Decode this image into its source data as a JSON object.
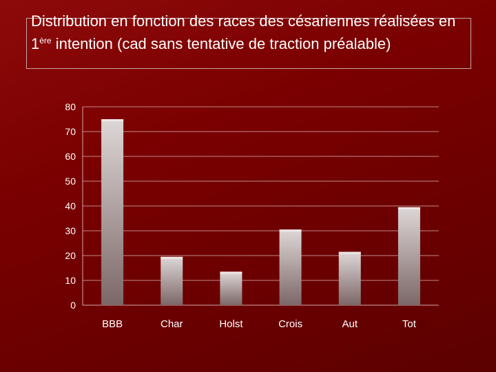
{
  "slide": {
    "title_part1": "Distribution en fonction des races des césariennes réalisées en 1",
    "title_sup": "ère",
    "title_part2": " intention (cad sans tentative de traction préalable)"
  },
  "chart_data": {
    "type": "bar",
    "categories": [
      "BBB",
      "Char",
      "Holst",
      "Crois",
      "Aut",
      "Tot"
    ],
    "values": [
      75,
      19.5,
      13.5,
      30.5,
      21.5,
      39.5
    ],
    "ylim": [
      0,
      80
    ],
    "yticks": [
      "0",
      "10",
      "20",
      "30",
      "40",
      "50",
      "60",
      "70",
      "80"
    ],
    "grid": true,
    "colors": {
      "bar_top": "#ded7d7",
      "bar_bottom": "#7c6767",
      "grid": "#c28a8a"
    }
  }
}
